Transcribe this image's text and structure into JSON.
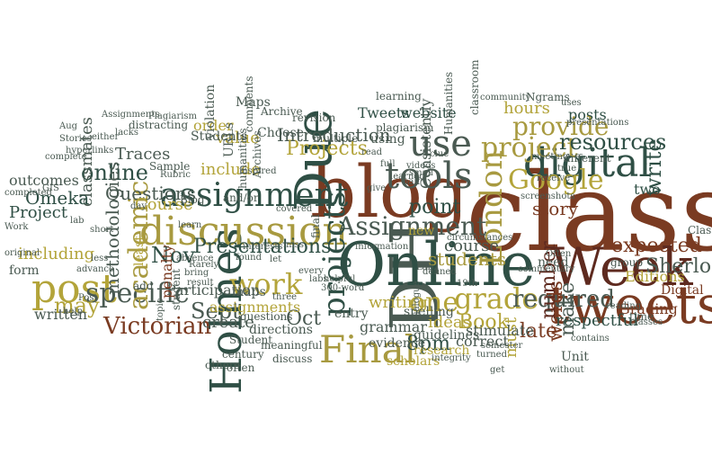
{
  "palette": {
    "dark_green": "#2f4f45",
    "brown": "#7a3b22",
    "olive": "#b3a43a",
    "slate": "#4a5a52",
    "maroon": "#5e2a1f",
    "gold": "#a89a40"
  },
  "words": [
    {
      "text": "class",
      "color": "brown",
      "rot": 0
    },
    {
      "text": "blog",
      "color": "brown",
      "rot": 0
    },
    {
      "text": "DH",
      "color": "slate",
      "rot": -90
    },
    {
      "text": "Online",
      "color": "dark_green",
      "rot": 0
    },
    {
      "text": "Week",
      "color": "maroon",
      "rot": 0
    },
    {
      "text": "Holmes",
      "color": "dark_green",
      "rot": -90
    },
    {
      "text": "tweets",
      "color": "brown",
      "rot": 0
    },
    {
      "text": "discussion",
      "color": "gold",
      "rot": 0
    },
    {
      "text": "assignment",
      "color": "dark_green",
      "rot": 0
    },
    {
      "text": "Due",
      "color": "dark_green",
      "rot": -90
    },
    {
      "text": "post",
      "color": "olive",
      "rot": 0
    },
    {
      "text": "use",
      "color": "slate",
      "rot": 0
    },
    {
      "text": "digital",
      "color": "dark_green",
      "rot": 0
    },
    {
      "text": "tools",
      "color": "slate",
      "rot": 0
    },
    {
      "text": "Final",
      "color": "gold",
      "rot": 0
    },
    {
      "text": "Assignment",
      "color": "slate",
      "rot": 0
    },
    {
      "text": "Google",
      "color": "olive",
      "rot": 0
    },
    {
      "text": "project",
      "color": "gold",
      "rot": 0
    },
    {
      "text": "London",
      "color": "gold",
      "rot": -90
    },
    {
      "text": "projects",
      "color": "dark_green",
      "rot": -90
    },
    {
      "text": "work",
      "color": "olive",
      "rot": 0
    },
    {
      "text": "grade",
      "color": "olive",
      "rot": 0
    },
    {
      "text": "one",
      "color": "olive",
      "rot": 0
    },
    {
      "text": "Victorian",
      "color": "brown",
      "rot": 0
    },
    {
      "text": "provide",
      "color": "gold",
      "rot": 0
    },
    {
      "text": "resources",
      "color": "dark_green",
      "rot": 0
    },
    {
      "text": "specific",
      "color": "slate",
      "rot": 0
    },
    {
      "text": "academic",
      "color": "gold",
      "rot": -90
    },
    {
      "text": "online",
      "color": "dark_green",
      "rot": 0
    },
    {
      "text": "required",
      "color": "slate",
      "rot": 0
    },
    {
      "text": "expected",
      "color": "brown",
      "rot": 0
    },
    {
      "text": "Sherlock",
      "color": "slate",
      "rot": 0
    },
    {
      "text": "Presentations",
      "color": "dark_green",
      "rot": 0
    },
    {
      "text": "Projects",
      "color": "olive",
      "rot": 0
    },
    {
      "text": "Introduction",
      "color": "slate",
      "rot": 0
    },
    {
      "text": "Oct",
      "color": "slate",
      "rot": 0
    },
    {
      "text": "Nov",
      "color": "dark_green",
      "rot": 0
    },
    {
      "text": "Sept",
      "color": "slate",
      "rot": 0
    },
    {
      "text": "may",
      "color": "olive",
      "rot": 0
    },
    {
      "text": "Questions",
      "color": "slate",
      "rot": 0
    },
    {
      "text": "methodologies",
      "color": "slate",
      "rot": -90
    },
    {
      "text": "classmates",
      "color": "slate",
      "rot": -90
    },
    {
      "text": "Book",
      "color": "olive",
      "rot": 0
    },
    {
      "text": "8pm",
      "color": "dark_green",
      "rot": 0
    },
    {
      "text": "make",
      "color": "slate",
      "rot": -90
    },
    {
      "text": "words",
      "color": "brown",
      "rot": -90
    },
    {
      "text": "late",
      "color": "brown",
      "rot": 0
    },
    {
      "text": "include",
      "color": "olive",
      "rot": 0
    },
    {
      "text": "write",
      "color": "dark_green",
      "rot": -90
    },
    {
      "text": "story",
      "color": "brown",
      "rot": 0
    },
    {
      "text": "Tweets",
      "color": "dark_green",
      "rot": 0
    },
    {
      "text": "website",
      "color": "dark_green",
      "rot": 0
    },
    {
      "text": "hours",
      "color": "olive",
      "rot": 0
    },
    {
      "text": "posts",
      "color": "dark_green",
      "rot": 0
    },
    {
      "text": "Course",
      "color": "olive",
      "rot": 0
    },
    {
      "text": "value",
      "color": "olive",
      "rot": 0
    },
    {
      "text": "create",
      "color": "slate",
      "rot": 0
    },
    {
      "text": "Editions",
      "color": "olive",
      "rot": 0
    },
    {
      "text": "Grading",
      "color": "brown",
      "rot": 0
    },
    {
      "text": "Digital",
      "color": "brown",
      "rot": 0
    },
    {
      "text": "Participation",
      "color": "slate",
      "rot": 0
    },
    {
      "text": "Traces",
      "color": "slate",
      "rot": 0
    },
    {
      "text": "Omeka",
      "color": "dark_green",
      "rot": 0
    },
    {
      "text": "Project",
      "color": "dark_green",
      "rot": 0
    },
    {
      "text": "outcomes",
      "color": "slate",
      "rot": 0
    },
    {
      "text": "including",
      "color": "olive",
      "rot": 0
    },
    {
      "text": "form",
      "color": "slate",
      "rot": 0
    },
    {
      "text": "written",
      "color": "slate",
      "rot": 0
    },
    {
      "text": "ideas",
      "color": "olive",
      "rot": 0
    },
    {
      "text": "course",
      "color": "slate",
      "rot": 0
    },
    {
      "text": "students",
      "color": "gold",
      "rot": 0
    },
    {
      "text": "number",
      "color": "maroon",
      "rot": -90
    },
    {
      "text": "writing",
      "color": "olive",
      "rot": 0
    },
    {
      "text": "point",
      "color": "dark_green",
      "rot": 0
    },
    {
      "text": "respectful",
      "color": "dark_green",
      "rot": 0
    },
    {
      "text": "Consistently",
      "color": "slate",
      "rot": -90
    },
    {
      "text": "grammar",
      "color": "slate",
      "rot": 0
    },
    {
      "text": "spelling",
      "color": "slate",
      "rot": 0
    },
    {
      "text": "correct",
      "color": "slate",
      "rot": 0
    },
    {
      "text": "must",
      "color": "olive",
      "rot": -90
    },
    {
      "text": "stimulate",
      "color": "slate",
      "rot": 0
    },
    {
      "text": "evidence",
      "color": "slate",
      "rot": 0
    },
    {
      "text": "research",
      "color": "olive",
      "rot": 0
    },
    {
      "text": "scholars",
      "color": "olive",
      "rot": 0
    },
    {
      "text": "guidelines",
      "color": "slate",
      "rot": 0
    },
    {
      "text": "entry",
      "color": "slate",
      "rot": 0
    },
    {
      "text": "Unit",
      "color": "slate",
      "rot": 0
    },
    {
      "text": "need",
      "color": "slate",
      "rot": 0
    },
    {
      "text": "two",
      "color": "dark_green",
      "rot": 0
    },
    {
      "text": "Class",
      "color": "slate",
      "rot": 0
    },
    {
      "text": "final",
      "color": "slate",
      "rot": -90
    },
    {
      "text": "assignments",
      "color": "olive",
      "rot": 0
    },
    {
      "text": "directions",
      "color": "slate",
      "rot": 0
    },
    {
      "text": "questions",
      "color": "slate",
      "rot": 0
    },
    {
      "text": "century",
      "color": "slate",
      "rot": 0
    },
    {
      "text": "others",
      "color": "slate",
      "rot": 0
    },
    {
      "text": "often",
      "color": "slate",
      "rot": 0
    },
    {
      "text": "discuss",
      "color": "slate",
      "rot": 0
    },
    {
      "text": "meaningful",
      "color": "slate",
      "rot": 0
    },
    {
      "text": "least",
      "color": "olive",
      "rot": -90
    },
    {
      "text": "penalty",
      "color": "brown",
      "rot": -90
    },
    {
      "text": "student",
      "color": "slate",
      "rot": -90
    },
    {
      "text": "Student",
      "color": "slate",
      "rot": 0
    },
    {
      "text": "maps",
      "color": "slate",
      "rot": 0
    },
    {
      "text": "Archives",
      "color": "slate",
      "rot": -90
    },
    {
      "text": "Choose",
      "color": "slate",
      "rot": 0
    },
    {
      "text": "revision",
      "color": "slate",
      "rot": 0
    },
    {
      "text": "multiple",
      "color": "slate",
      "rot": 0
    },
    {
      "text": "Archive",
      "color": "slate",
      "rot": 0
    },
    {
      "text": "learning",
      "color": "slate",
      "rot": 0
    },
    {
      "text": "plagiarism",
      "color": "slate",
      "rot": 0
    },
    {
      "text": "classroom",
      "color": "slate",
      "rot": -90
    },
    {
      "text": "Humanities",
      "color": "slate",
      "rot": -90
    },
    {
      "text": "community",
      "color": "slate",
      "rot": 0
    },
    {
      "text": "Ngrams",
      "color": "slate",
      "rot": 0
    },
    {
      "text": "uses",
      "color": "slate",
      "rot": 0
    },
    {
      "text": "presentations",
      "color": "slate",
      "rot": 0
    },
    {
      "text": "meeting",
      "color": "slate",
      "rot": 0
    },
    {
      "text": "different",
      "color": "slate",
      "rot": 0
    },
    {
      "text": "true",
      "color": "slate",
      "rot": 0
    },
    {
      "text": "time",
      "color": "slate",
      "rot": 0
    },
    {
      "text": "classes",
      "color": "slate",
      "rot": 0
    },
    {
      "text": "reading",
      "color": "slate",
      "rot": 0
    },
    {
      "text": "group",
      "color": "slate",
      "rot": 0
    },
    {
      "text": "contains",
      "color": "slate",
      "rot": 0
    },
    {
      "text": "semester",
      "color": "slate",
      "rot": 0
    },
    {
      "text": "turned",
      "color": "slate",
      "rot": 0
    },
    {
      "text": "integrity",
      "color": "slate",
      "rot": 0
    },
    {
      "text": "Often",
      "color": "slate",
      "rot": 0
    },
    {
      "text": "commentary",
      "color": "slate",
      "rot": 0
    },
    {
      "text": "screenshots",
      "color": "slate",
      "rot": 0
    },
    {
      "text": "receive",
      "color": "slate",
      "rot": 0
    },
    {
      "text": "dialogue",
      "color": "slate",
      "rot": -90
    },
    {
      "text": "information",
      "color": "slate",
      "rot": 0
    },
    {
      "text": "helpful",
      "color": "slate",
      "rot": 0
    },
    {
      "text": "Lab",
      "color": "slate",
      "rot": 0
    },
    {
      "text": "defined",
      "color": "slate",
      "rot": 0
    },
    {
      "text": "19th",
      "color": "slate",
      "rot": 0
    },
    {
      "text": "300-word",
      "color": "slate",
      "rot": 0
    },
    {
      "text": "labs",
      "color": "slate",
      "rot": 0
    },
    {
      "text": "every",
      "color": "slate",
      "rot": 0
    },
    {
      "text": "covered",
      "color": "slate",
      "rot": 0
    },
    {
      "text": "three",
      "color": "slate",
      "rot": 0
    },
    {
      "text": "interests",
      "color": "slate",
      "rot": 0
    },
    {
      "text": "found",
      "color": "slate",
      "rot": 0
    },
    {
      "text": "let",
      "color": "slate",
      "rot": 0
    },
    {
      "text": "Rarely",
      "color": "slate",
      "rot": 0
    },
    {
      "text": "bring",
      "color": "slate",
      "rot": 0
    },
    {
      "text": "result",
      "color": "slate",
      "rot": 0
    },
    {
      "text": "topic",
      "color": "slate",
      "rot": -90
    },
    {
      "text": "less",
      "color": "slate",
      "rot": 0
    },
    {
      "text": "advance",
      "color": "slate",
      "rot": 0
    },
    {
      "text": "Post",
      "color": "slate",
      "rot": 0
    },
    {
      "text": "help",
      "color": "slate",
      "rot": 0
    },
    {
      "text": "complete",
      "color": "slate",
      "rot": 0
    },
    {
      "text": "original",
      "color": "slate",
      "rot": 0
    },
    {
      "text": "Work",
      "color": "slate",
      "rot": 0
    },
    {
      "text": "completed",
      "color": "slate",
      "rot": 0
    },
    {
      "text": "GIS",
      "color": "slate",
      "rot": 0
    },
    {
      "text": "Aug",
      "color": "slate",
      "rot": 0
    },
    {
      "text": "Stories",
      "color": "slate",
      "rot": 0
    },
    {
      "text": "hyperlinks",
      "color": "slate",
      "rot": 0
    },
    {
      "text": "either",
      "color": "slate",
      "rot": 0
    },
    {
      "text": "lacks",
      "color": "slate",
      "rot": 0
    },
    {
      "text": "Assignments",
      "color": "slate",
      "rot": 0
    },
    {
      "text": "Plagiarism",
      "color": "slate",
      "rot": 0
    },
    {
      "text": "distracting",
      "color": "slate",
      "rot": 0
    },
    {
      "text": "Sample",
      "color": "slate",
      "rot": 0
    },
    {
      "text": "Rubric",
      "color": "slate",
      "rot": 0
    },
    {
      "text": "Blog",
      "color": "slate",
      "rot": 0
    },
    {
      "text": "and/or",
      "color": "slate",
      "rot": 0
    },
    {
      "text": "learn",
      "color": "slate",
      "rot": 0
    },
    {
      "text": "lab",
      "color": "slate",
      "rot": 0
    },
    {
      "text": "short",
      "color": "slate",
      "rot": 0
    },
    {
      "text": "day",
      "color": "slate",
      "rot": 0
    },
    {
      "text": "add",
      "color": "slate",
      "rot": 0
    },
    {
      "text": "absence",
      "color": "slate",
      "rot": 0
    },
    {
      "text": "Maps",
      "color": "slate",
      "rot": 0
    },
    {
      "text": "humanities",
      "color": "slate",
      "rot": -90
    },
    {
      "text": "order",
      "color": "olive",
      "rot": 0
    },
    {
      "text": "violation",
      "color": "slate",
      "rot": -90
    },
    {
      "text": "URLs",
      "color": "slate",
      "rot": -90
    },
    {
      "text": "comments",
      "color": "slate",
      "rot": -90
    },
    {
      "text": "Students",
      "color": "slate",
      "rot": 0
    },
    {
      "text": "inspired",
      "color": "slate",
      "rot": 0
    },
    {
      "text": "miss",
      "color": "slate",
      "rot": 0
    },
    {
      "text": "videos",
      "color": "slate",
      "rot": 0
    },
    {
      "text": "learned",
      "color": "slate",
      "rot": 0
    },
    {
      "text": "using",
      "color": "slate",
      "rot": 0
    },
    {
      "text": "read",
      "color": "slate",
      "rot": 0
    },
    {
      "text": "half",
      "color": "slate",
      "rot": 0
    },
    {
      "text": "small",
      "color": "slate",
      "rot": 0
    },
    {
      "text": "full",
      "color": "slate",
      "rot": 0
    },
    {
      "text": "give",
      "color": "slate",
      "rot": 0
    },
    {
      "text": "clue",
      "color": "slate",
      "rot": 0
    },
    {
      "text": "circumstances",
      "color": "slate",
      "rot": 0
    },
    {
      "text": "new",
      "color": "olive",
      "rot": 0
    },
    {
      "text": "without",
      "color": "slate",
      "rot": 0
    },
    {
      "text": "get",
      "color": "slate",
      "rot": 0
    }
  ]
}
